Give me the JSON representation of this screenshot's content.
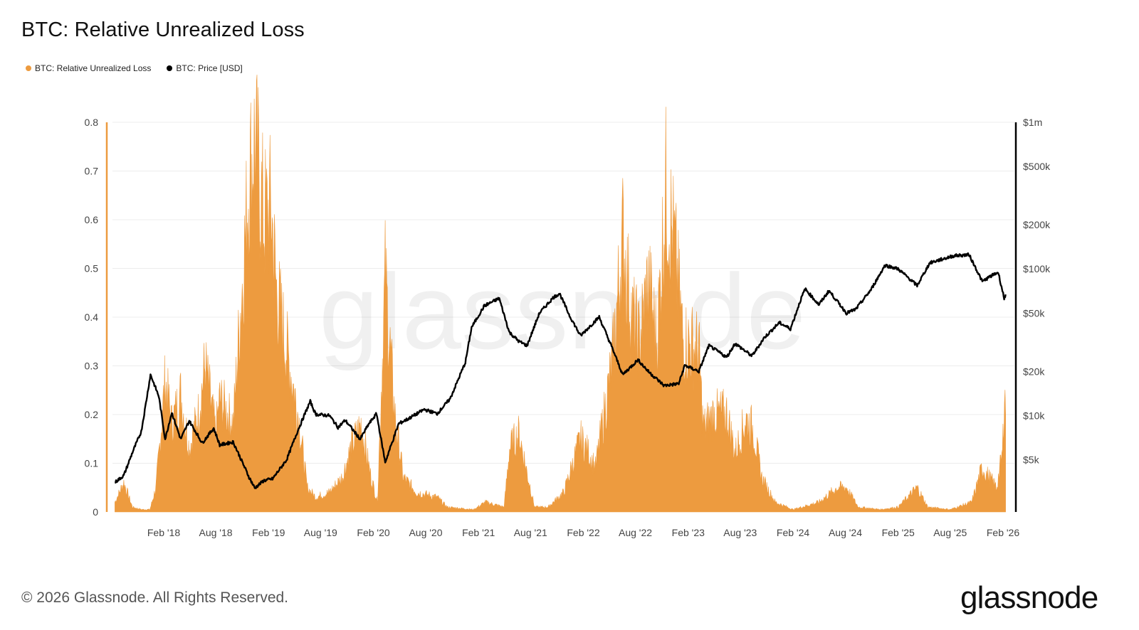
{
  "page": {
    "title": "BTC: Relative Unrealized Loss",
    "copyright": "© 2026 Glassnode. All Rights Reserved.",
    "brand": "glassnode",
    "watermark": "glassnode"
  },
  "colors": {
    "loss": "#ED9B3F",
    "price": "#000000",
    "grid": "#ECECEC",
    "axis_text": "#444444"
  },
  "chart_data": {
    "type": "area",
    "title": "BTC: Relative Unrealized Loss",
    "legend": [
      {
        "name": "BTC: Relative Unrealized Loss",
        "color": "#ED9B3F"
      },
      {
        "name": "BTC: Price [USD]",
        "color": "#000000"
      }
    ],
    "legend_position": "top-left",
    "grid": true,
    "x_range": [
      "2017-08",
      "2026-02"
    ],
    "x_ticks": [
      "Feb '18",
      "Aug '18",
      "Feb '19",
      "Aug '19",
      "Feb '20",
      "Aug '20",
      "Feb '21",
      "Aug '21",
      "Feb '22",
      "Aug '22",
      "Feb '23",
      "Aug '23",
      "Feb '24",
      "Aug '24",
      "Feb '25",
      "Aug '25",
      "Feb '26"
    ],
    "y_left": {
      "label": "",
      "range": [
        0,
        0.8
      ],
      "ticks": [
        "0",
        "0.1",
        "0.2",
        "0.3",
        "0.4",
        "0.5",
        "0.6",
        "0.7",
        "0.8"
      ]
    },
    "y_right": {
      "label": "",
      "scale": "log",
      "range": [
        2200,
        1000000
      ],
      "ticks": [
        {
          "value": 5000,
          "label": "$5k"
        },
        {
          "value": 10000,
          "label": "$10k"
        },
        {
          "value": 20000,
          "label": "$20k"
        },
        {
          "value": 50000,
          "label": "$50k"
        },
        {
          "value": 100000,
          "label": "$100k"
        },
        {
          "value": 200000,
          "label": "$200k"
        },
        {
          "value": 500000,
          "label": "$500k"
        },
        {
          "value": 1000000,
          "label": "$1m"
        }
      ]
    },
    "series": [
      {
        "name": "BTC: Relative Unrealized Loss",
        "axis": "left",
        "kind": "area",
        "points": [
          [
            "2017-08-15",
            0.02
          ],
          [
            "2017-09-15",
            0.06
          ],
          [
            "2017-10-15",
            0.01
          ],
          [
            "2017-11-15",
            0.005
          ],
          [
            "2017-12-15",
            0.005
          ],
          [
            "2018-01-05",
            0.05
          ],
          [
            "2018-01-20",
            0.15
          ],
          [
            "2018-02-06",
            0.27
          ],
          [
            "2018-03-01",
            0.18
          ],
          [
            "2018-04-01",
            0.24
          ],
          [
            "2018-05-01",
            0.13
          ],
          [
            "2018-06-01",
            0.2
          ],
          [
            "2018-06-25",
            0.3
          ],
          [
            "2018-08-01",
            0.16
          ],
          [
            "2018-08-15",
            0.23
          ],
          [
            "2018-10-01",
            0.18
          ],
          [
            "2018-11-25",
            0.68
          ],
          [
            "2018-12-15",
            0.76
          ],
          [
            "2019-01-15",
            0.6
          ],
          [
            "2019-02-10",
            0.62
          ],
          [
            "2019-03-01",
            0.45
          ],
          [
            "2019-04-15",
            0.3
          ],
          [
            "2019-05-15",
            0.2
          ],
          [
            "2019-06-15",
            0.05
          ],
          [
            "2019-07-15",
            0.03
          ],
          [
            "2019-09-01",
            0.04
          ],
          [
            "2019-10-15",
            0.07
          ],
          [
            "2019-11-15",
            0.13
          ],
          [
            "2019-12-20",
            0.18
          ],
          [
            "2020-01-20",
            0.08
          ],
          [
            "2020-02-15",
            0.02
          ],
          [
            "2020-03-13",
            0.48
          ],
          [
            "2020-04-15",
            0.2
          ],
          [
            "2020-05-15",
            0.07
          ],
          [
            "2020-07-01",
            0.04
          ],
          [
            "2020-09-10",
            0.03
          ],
          [
            "2020-10-15",
            0.01
          ],
          [
            "2021-01-15",
            0.005
          ],
          [
            "2021-02-25",
            0.02
          ],
          [
            "2021-05-01",
            0.01
          ],
          [
            "2021-05-20",
            0.13
          ],
          [
            "2021-06-22",
            0.16
          ],
          [
            "2021-07-20",
            0.08
          ],
          [
            "2021-08-15",
            0.01
          ],
          [
            "2021-10-01",
            0.01
          ],
          [
            "2021-11-25",
            0.04
          ],
          [
            "2022-01-22",
            0.15
          ],
          [
            "2022-02-20",
            0.12
          ],
          [
            "2022-03-15",
            0.09
          ],
          [
            "2022-05-12",
            0.3
          ],
          [
            "2022-06-18",
            0.56
          ],
          [
            "2022-07-20",
            0.4
          ],
          [
            "2022-08-15",
            0.35
          ],
          [
            "2022-09-15",
            0.47
          ],
          [
            "2022-10-15",
            0.35
          ],
          [
            "2022-11-15",
            0.66
          ],
          [
            "2022-12-15",
            0.54
          ],
          [
            "2023-01-15",
            0.35
          ],
          [
            "2023-02-15",
            0.34
          ],
          [
            "2023-03-10",
            0.33
          ],
          [
            "2023-03-25",
            0.17
          ],
          [
            "2023-05-01",
            0.2
          ],
          [
            "2023-06-15",
            0.2
          ],
          [
            "2023-07-15",
            0.12
          ],
          [
            "2023-08-20",
            0.19
          ],
          [
            "2023-09-15",
            0.17
          ],
          [
            "2023-10-15",
            0.07
          ],
          [
            "2023-12-01",
            0.02
          ],
          [
            "2024-02-01",
            0.005
          ],
          [
            "2024-05-01",
            0.02
          ],
          [
            "2024-07-05",
            0.05
          ],
          [
            "2024-08-05",
            0.05
          ],
          [
            "2024-09-15",
            0.01
          ],
          [
            "2024-12-01",
            0.005
          ],
          [
            "2025-02-01",
            0.01
          ],
          [
            "2025-04-08",
            0.05
          ],
          [
            "2025-05-15",
            0.01
          ],
          [
            "2025-08-01",
            0.005
          ],
          [
            "2025-10-15",
            0.02
          ],
          [
            "2025-11-20",
            0.09
          ],
          [
            "2025-12-15",
            0.07
          ],
          [
            "2026-01-10",
            0.05
          ],
          [
            "2026-01-30",
            0.12
          ],
          [
            "2026-02-06",
            0.25
          ],
          [
            "2026-02-10",
            0.2
          ]
        ]
      },
      {
        "name": "BTC: Price [USD]",
        "axis": "right",
        "kind": "line",
        "points": [
          [
            "2017-08-15",
            3500
          ],
          [
            "2017-09-15",
            3900
          ],
          [
            "2017-10-15",
            5600
          ],
          [
            "2017-11-15",
            7800
          ],
          [
            "2017-12-17",
            19000
          ],
          [
            "2018-01-15",
            13500
          ],
          [
            "2018-02-06",
            6900
          ],
          [
            "2018-03-01",
            10500
          ],
          [
            "2018-04-01",
            6900
          ],
          [
            "2018-05-01",
            9200
          ],
          [
            "2018-06-15",
            6500
          ],
          [
            "2018-07-25",
            8200
          ],
          [
            "2018-08-15",
            6300
          ],
          [
            "2018-10-01",
            6600
          ],
          [
            "2018-11-25",
            3800
          ],
          [
            "2018-12-15",
            3200
          ],
          [
            "2019-01-15",
            3600
          ],
          [
            "2019-02-15",
            3700
          ],
          [
            "2019-04-05",
            5000
          ],
          [
            "2019-05-15",
            8000
          ],
          [
            "2019-06-26",
            12500
          ],
          [
            "2019-07-15",
            10200
          ],
          [
            "2019-09-01",
            10000
          ],
          [
            "2019-10-01",
            8300
          ],
          [
            "2019-10-26",
            9300
          ],
          [
            "2019-12-17",
            6900
          ],
          [
            "2020-01-15",
            8700
          ],
          [
            "2020-02-12",
            10300
          ],
          [
            "2020-03-13",
            4800
          ],
          [
            "2020-04-29",
            8800
          ],
          [
            "2020-06-01",
            9500
          ],
          [
            "2020-07-27",
            11000
          ],
          [
            "2020-09-10",
            10300
          ],
          [
            "2020-10-25",
            13000
          ],
          [
            "2020-12-17",
            23000
          ],
          [
            "2021-01-08",
            40000
          ],
          [
            "2021-02-21",
            56000
          ],
          [
            "2021-04-14",
            63000
          ],
          [
            "2021-05-19",
            37000
          ],
          [
            "2021-06-22",
            32000
          ],
          [
            "2021-07-20",
            30000
          ],
          [
            "2021-09-01",
            50000
          ],
          [
            "2021-10-20",
            64000
          ],
          [
            "2021-11-10",
            68000
          ],
          [
            "2021-12-15",
            48000
          ],
          [
            "2022-01-22",
            35000
          ],
          [
            "2022-03-28",
            47000
          ],
          [
            "2022-05-12",
            29000
          ],
          [
            "2022-06-18",
            19000
          ],
          [
            "2022-08-10",
            24000
          ],
          [
            "2022-09-15",
            20000
          ],
          [
            "2022-11-09",
            16000
          ],
          [
            "2022-12-30",
            16500
          ],
          [
            "2023-01-20",
            22000
          ],
          [
            "2023-03-10",
            20000
          ],
          [
            "2023-04-14",
            30000
          ],
          [
            "2023-06-15",
            25000
          ],
          [
            "2023-07-14",
            31000
          ],
          [
            "2023-09-11",
            25500
          ],
          [
            "2023-10-24",
            34000
          ],
          [
            "2023-12-15",
            43000
          ],
          [
            "2024-01-23",
            39000
          ],
          [
            "2024-02-28",
            62000
          ],
          [
            "2024-03-14",
            73000
          ],
          [
            "2024-05-01",
            57000
          ],
          [
            "2024-06-05",
            71000
          ],
          [
            "2024-08-05",
            50000
          ],
          [
            "2024-09-06",
            53000
          ],
          [
            "2024-10-29",
            72000
          ],
          [
            "2024-12-17",
            106000
          ],
          [
            "2025-02-01",
            100000
          ],
          [
            "2025-04-08",
            77000
          ],
          [
            "2025-05-22",
            110000
          ],
          [
            "2025-08-14",
            123000
          ],
          [
            "2025-10-06",
            125000
          ],
          [
            "2025-11-21",
            82000
          ],
          [
            "2025-12-15",
            88000
          ],
          [
            "2026-01-15",
            95000
          ],
          [
            "2026-02-05",
            63000
          ],
          [
            "2026-02-10",
            67000
          ]
        ]
      }
    ]
  }
}
